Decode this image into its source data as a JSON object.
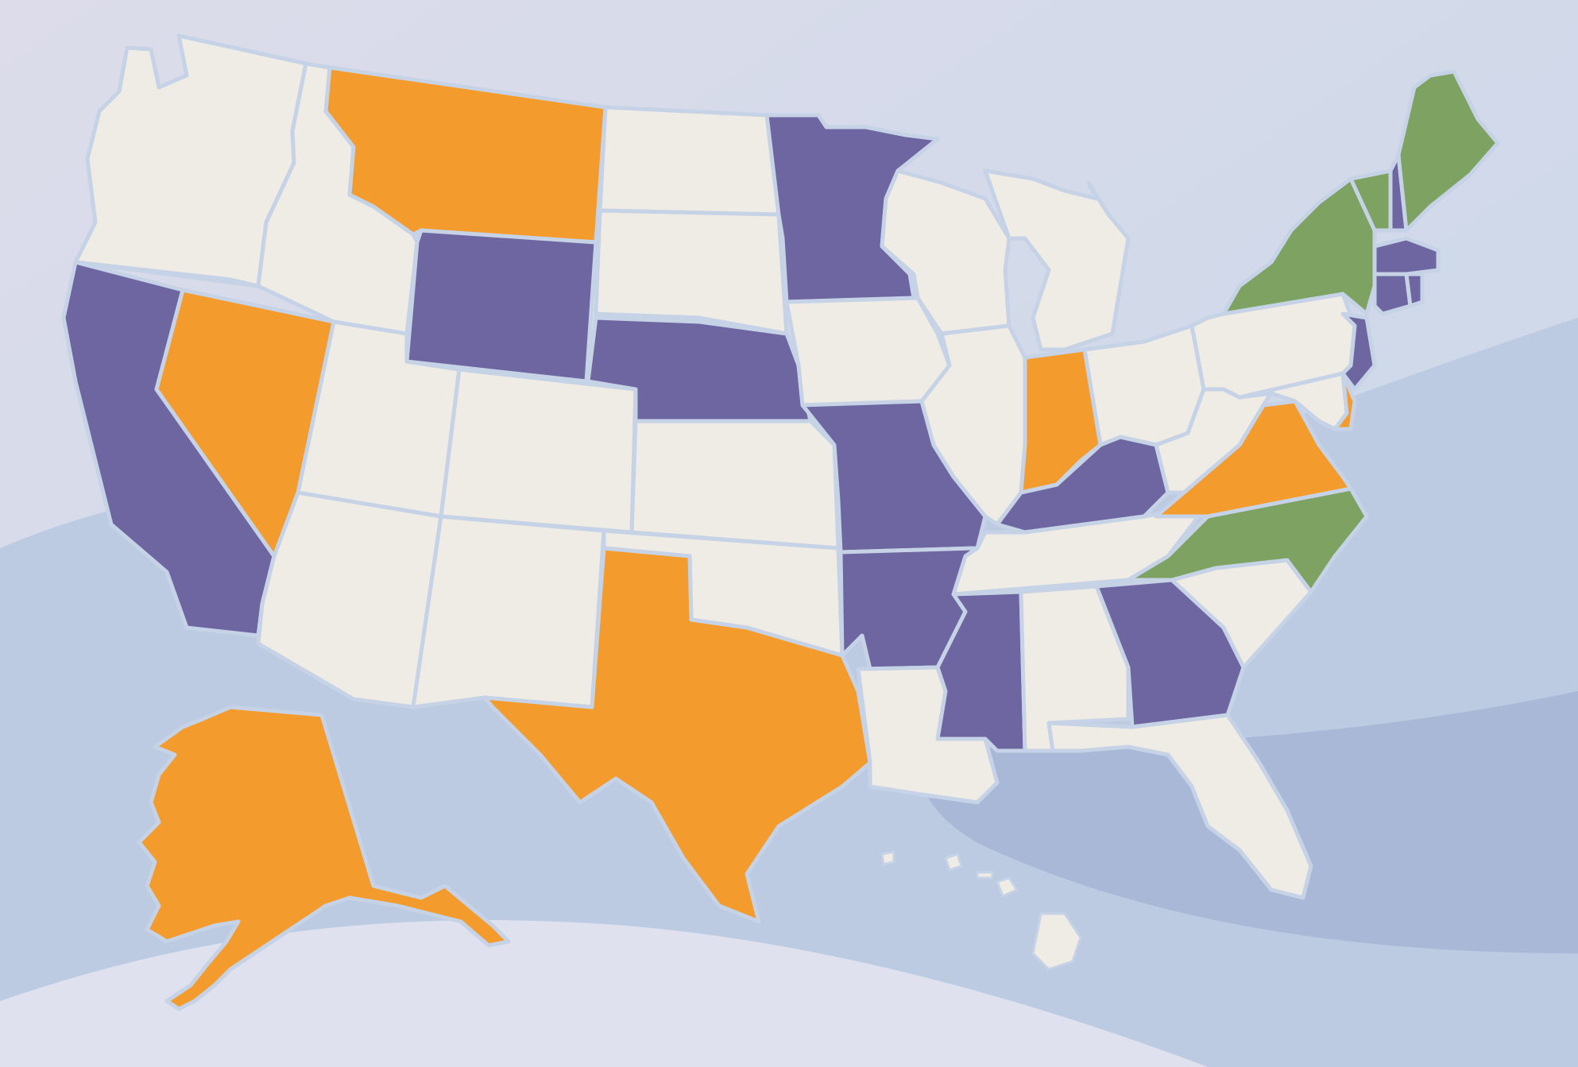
{
  "palette": {
    "background_top": "#dcdcea",
    "background_bottom": "#c8d7ea",
    "wave_dark": "#a8b8d6",
    "wave_mid": "#bccbe2",
    "wave_light": "#dfe2ee",
    "border": "#c6d2e6"
  },
  "category_colors": {
    "none": "#efebe5",
    "orange": "#f39c2d",
    "purple": "#6e66a0",
    "green": "#7da262"
  },
  "states": {
    "WA": "none",
    "OR": "none",
    "CA": "purple",
    "NV": "orange",
    "ID": "none",
    "MT": "orange",
    "WY": "purple",
    "UT": "none",
    "AZ": "none",
    "CO": "none",
    "NM": "none",
    "ND": "none",
    "SD": "none",
    "NE": "purple",
    "KS": "none",
    "OK": "none",
    "TX": "orange",
    "MN": "purple",
    "IA": "none",
    "MO": "purple",
    "AR": "purple",
    "LA": "none",
    "WI": "none",
    "IL": "none",
    "MI": "none",
    "IN": "orange",
    "OH": "none",
    "KY": "purple",
    "TN": "none",
    "MS": "purple",
    "AL": "none",
    "GA": "purple",
    "FL": "none",
    "SC": "none",
    "NC": "green",
    "VA": "orange",
    "WV": "none",
    "PA": "none",
    "NY": "green",
    "VT": "green",
    "NH": "purple",
    "ME": "green",
    "MA": "purple",
    "CT": "purple",
    "RI": "purple",
    "NJ": "purple",
    "DE": "orange",
    "MD": "none",
    "AK": "orange",
    "HI": "none"
  }
}
